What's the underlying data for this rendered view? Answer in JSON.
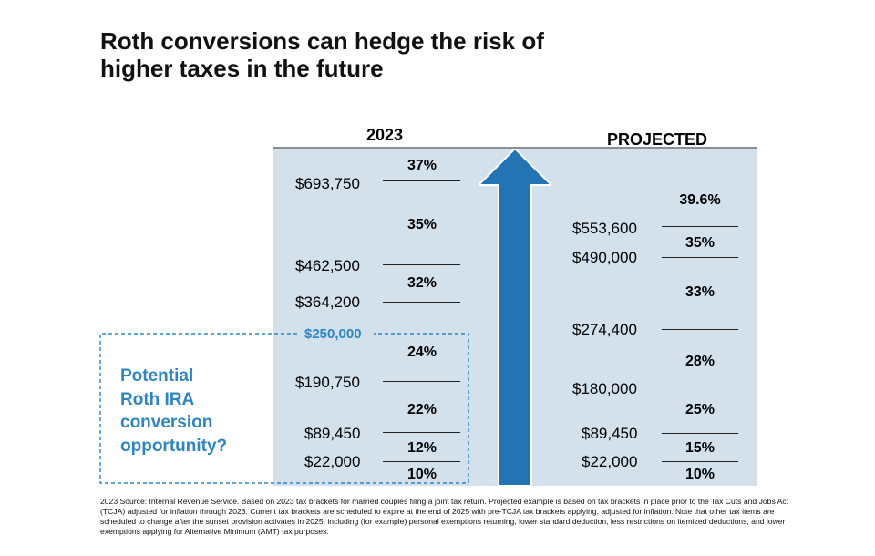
{
  "title": {
    "line1": "Roth conversions can hedge the risk of",
    "line2": "higher taxes in the future"
  },
  "chart_data": {
    "type": "table",
    "columns": [
      {
        "header": "2023",
        "rates": [
          "37%",
          "35%",
          "32%",
          "24%",
          "22%",
          "12%",
          "10%"
        ],
        "thresholds": [
          "$693,750",
          "$462,500",
          "$364,200",
          "$190,750",
          "$89,450",
          "$22,000"
        ]
      },
      {
        "header": "PROJECTED",
        "rates": [
          "39.6%",
          "35%",
          "33%",
          "28%",
          "25%",
          "15%",
          "10%"
        ],
        "thresholds": [
          "$553,600",
          "$490,000",
          "$274,400",
          "$180,000",
          "$89,450",
          "$22,000"
        ]
      }
    ],
    "highlight": {
      "threshold": "$250,000",
      "label_lines": [
        "Potential",
        "Roth IRA",
        "conversion",
        "opportunity?"
      ]
    }
  },
  "colors": {
    "panel": "#d3e1ec",
    "accent": "#2e86c1",
    "arrow": "#2274b4"
  },
  "footnote": "2023 Source: Internal Revenue Service. Based on 2023 tax brackets for married couples filing a joint tax return. Projected example is based on tax brackets in place prior to the Tax Cuts and Jobs Act (TCJA) adjusted for inflation through 2023. Current tax brackets are scheduled to expire at the end of 2025 with pre-TCJA tax brackets applying, adjusted for inflation. Note that other tax items are scheduled to change after the sunset provision activates in 2025, including (for example) personal exemptions returning, lower standard deduction, less restrictions on itemized deductions, and lower exemptions applying for Alternative Minimum (AMT) tax purposes."
}
